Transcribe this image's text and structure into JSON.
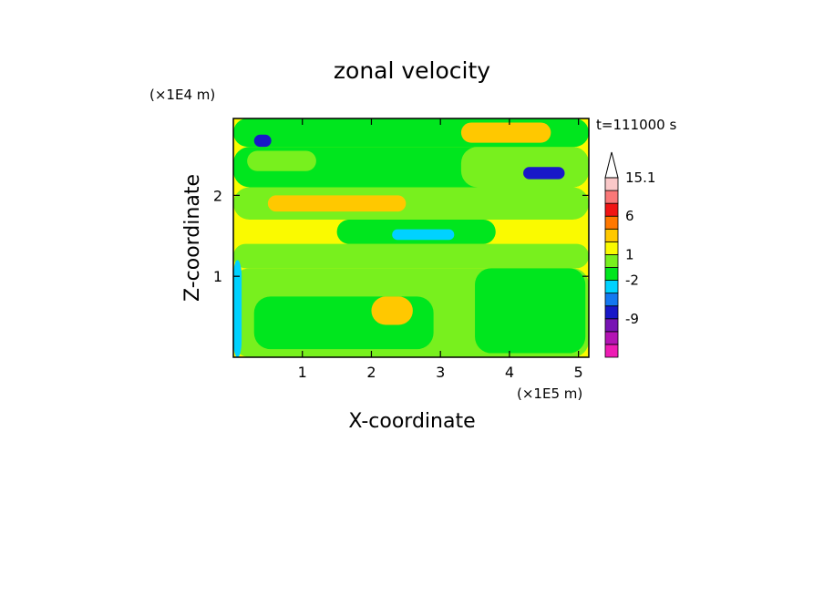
{
  "chart_data": {
    "type": "heatmap",
    "title": "zonal velocity",
    "xlabel": "X-coordinate",
    "ylabel": "Z-coordinate",
    "x_unit": "(×1E5 m)",
    "y_unit": "(×1E4 m)",
    "time_label": "t=111000 s",
    "xlim": [
      0,
      5.15
    ],
    "ylim": [
      0,
      2.95
    ],
    "x_ticks": [
      1,
      2,
      3,
      4,
      5
    ],
    "x_tick_labels": [
      "1",
      "2",
      "3",
      "4",
      "5"
    ],
    "y_ticks": [
      1,
      2
    ],
    "y_tick_labels": [
      "1",
      "2"
    ],
    "colorbar": {
      "levels": [
        "",
        "",
        "-9",
        "",
        "",
        "-2",
        "",
        "1",
        "",
        "",
        "6",
        "",
        "",
        "15.1"
      ],
      "colors": [
        "#ee1cb4",
        "#b414b4",
        "#7814b4",
        "#1818c8",
        "#1478f0",
        "#00d2ff",
        "#00e61e",
        "#78f01e",
        "#fafa00",
        "#ffc800",
        "#ff7800",
        "#f01414",
        "#fa7878",
        "#fac8c8"
      ],
      "extend_top": true
    },
    "regions": [
      {
        "x0": 0,
        "x1": 5.15,
        "y0": 0,
        "y1": 1.1,
        "level": "1"
      },
      {
        "x0": 0.3,
        "x1": 2.9,
        "y0": 0.1,
        "y1": 0.75,
        "level": "0"
      },
      {
        "x0": 3.5,
        "x1": 5.1,
        "y0": 0.05,
        "y1": 1.1,
        "level": "0"
      },
      {
        "x0": 2.0,
        "x1": 2.6,
        "y0": 0.4,
        "y1": 0.75,
        "level": "2"
      },
      {
        "x0": 0,
        "x1": 5.15,
        "y0": 1.1,
        "y1": 1.4,
        "level": "1"
      },
      {
        "x0": 1.5,
        "x1": 3.8,
        "y0": 1.4,
        "y1": 1.7,
        "level": "0"
      },
      {
        "x0": 2.3,
        "x1": 3.2,
        "y0": 1.45,
        "y1": 1.58,
        "level": "-2"
      },
      {
        "x0": 0,
        "x1": 5.15,
        "y0": 1.7,
        "y1": 2.1,
        "level": "1"
      },
      {
        "x0": 0.5,
        "x1": 2.5,
        "y0": 1.8,
        "y1": 2.0,
        "level": "2"
      },
      {
        "x0": 0,
        "x1": 5.15,
        "y0": 2.1,
        "y1": 2.6,
        "level": "0"
      },
      {
        "x0": 0.2,
        "x1": 1.2,
        "y0": 2.3,
        "y1": 2.55,
        "level": "1"
      },
      {
        "x0": 3.3,
        "x1": 5.15,
        "y0": 2.1,
        "y1": 2.6,
        "level": "1"
      },
      {
        "x0": 4.2,
        "x1": 4.8,
        "y0": 2.2,
        "y1": 2.35,
        "level": "-5"
      },
      {
        "x0": 0,
        "x1": 5.15,
        "y0": 2.6,
        "y1": 2.95,
        "level": "0"
      },
      {
        "x0": 3.3,
        "x1": 4.6,
        "y0": 2.65,
        "y1": 2.9,
        "level": "2"
      },
      {
        "x0": 0.3,
        "x1": 0.55,
        "y0": 2.6,
        "y1": 2.75,
        "level": "-5"
      },
      {
        "x0": 0,
        "x1": 0.12,
        "y0": 0,
        "y1": 1.2,
        "level": "-2"
      }
    ]
  }
}
